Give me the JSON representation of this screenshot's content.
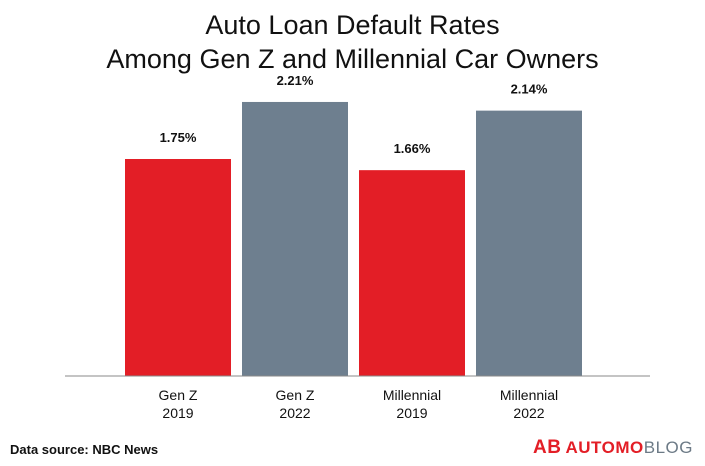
{
  "header": {
    "title_line1": "Auto Loan Default Rates",
    "title_line2": "Among Gen Z and Millennial Car Owners"
  },
  "footer": {
    "source": "Data source: NBC News",
    "logo_mark": "AB",
    "logo_word_1": "AUTOMO",
    "logo_word_2": "BLOG"
  },
  "colors": {
    "year_2019": "#e31e26",
    "year_2022": "#6e7f8f",
    "axis": "#888888"
  },
  "chart_data": {
    "type": "bar",
    "title": "Auto Loan Default Rates Among Gen Z and Millennial Car Owners",
    "categories": [
      [
        "Gen Z",
        "2019"
      ],
      [
        "Gen Z",
        "2022"
      ],
      [
        "Millennial",
        "2019"
      ],
      [
        "Millennial",
        "2022"
      ]
    ],
    "values": [
      1.75,
      2.21,
      1.66,
      2.14
    ],
    "value_labels": [
      "1.75%",
      "2.21%",
      "1.66%",
      "2.14%"
    ],
    "bar_colors": [
      "#e31e26",
      "#6e7f8f",
      "#e31e26",
      "#6e7f8f"
    ],
    "ylim": [
      0,
      2.5
    ],
    "grid": false,
    "legend": "none"
  }
}
